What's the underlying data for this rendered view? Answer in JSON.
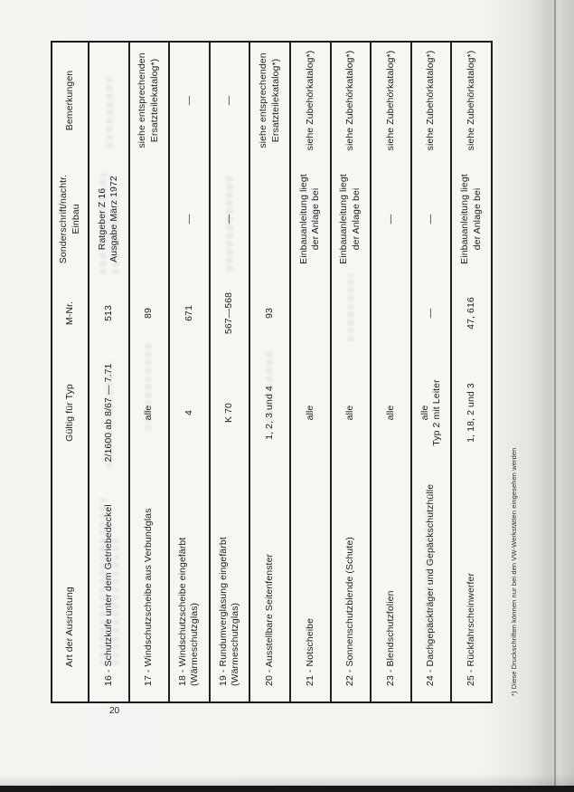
{
  "page_number": "20",
  "footnote": "*) Diese Druckschriften können nur bei den VW-Werkstätten eingesehen werden",
  "table": {
    "columns": [
      [
        "Art der Ausrüstung"
      ],
      [
        "Gültig für Typ"
      ],
      [
        "M-Nr."
      ],
      [
        "Sonderschrift/nachtr.",
        "Einbau"
      ],
      [
        "Bemerkungen"
      ]
    ],
    "rows": [
      {
        "art": [
          "16 - Schutzkufe unter dem Getriebedeckel"
        ],
        "typ": [
          "2/1600 ab 8/67 — 7.71"
        ],
        "mnr": [
          "513"
        ],
        "sonderschrift": [
          "Ratgeber Z 16",
          "Ausgabe März 1972"
        ],
        "bemerkungen": []
      },
      {
        "art": [
          "17 - Windschutzscheibe aus Verbundglas"
        ],
        "typ": [
          "alle"
        ],
        "mnr": [
          "89"
        ],
        "sonderschrift": [],
        "bemerkungen": [
          "siehe entsprechenden",
          "Ersatzteilekatalog*)"
        ]
      },
      {
        "art": [
          "18 - Windschutzscheibe eingefärbt",
          "(Wärmeschutzglas)"
        ],
        "typ": [
          "4"
        ],
        "mnr": [
          "671"
        ],
        "sonderschrift": [
          "—"
        ],
        "bemerkungen": [
          "—"
        ]
      },
      {
        "art": [
          "19 - Rundumverglasung eingefärbt",
          "(Wärmeschutzglas)"
        ],
        "typ": [
          "K 70"
        ],
        "mnr": [
          "567—568"
        ],
        "sonderschrift": [
          "—"
        ],
        "bemerkungen": [
          "—"
        ]
      },
      {
        "art": [
          "20 - Ausstellbare Seitenfenster"
        ],
        "typ": [
          "1, 2, 3 und 4"
        ],
        "mnr": [
          "93"
        ],
        "sonderschrift": [],
        "bemerkungen": [
          "siehe entsprechenden",
          "Ersatzteilekatalog*)"
        ]
      },
      {
        "art": [
          "21 - Notscheibe"
        ],
        "typ": [
          "alle"
        ],
        "mnr": [],
        "sonderschrift": [
          "Einbauanleitung liegt",
          "der Anlage bei"
        ],
        "bemerkungen": [
          "siehe Zubehörkatalog*)"
        ]
      },
      {
        "art": [
          "22 - Sonnenschutzblende (Schute)"
        ],
        "typ": [
          "alle"
        ],
        "mnr": [],
        "sonderschrift": [
          "Einbauanleitung liegt",
          "der Anlage bei"
        ],
        "bemerkungen": [
          "siehe Zubehörkatalog*)"
        ]
      },
      {
        "art": [
          "23 - Blendschutzfolien"
        ],
        "typ": [
          "alle"
        ],
        "mnr": [],
        "sonderschrift": [
          "—"
        ],
        "bemerkungen": [
          "siehe Zubehörkatalog*)"
        ]
      },
      {
        "art": [
          "24 - Dachgepäckträger und Gepäckschutzhülle"
        ],
        "typ": [
          "alle",
          "Typ 2 mit Leiter"
        ],
        "mnr": [
          "—"
        ],
        "sonderschrift": [
          "—"
        ],
        "bemerkungen": [
          "siehe Zubehörkatalog*)"
        ]
      },
      {
        "art": [
          "25 - Rückfahrscheinwerfer"
        ],
        "typ": [
          "1, 18, 2 und 3"
        ],
        "mnr": [
          "47, 616"
        ],
        "sonderschrift": [
          "Einbauanleitung liegt",
          "der Anlage bei"
        ],
        "bemerkungen": [
          "siehe Zubehörkatalog*)"
        ]
      }
    ]
  }
}
